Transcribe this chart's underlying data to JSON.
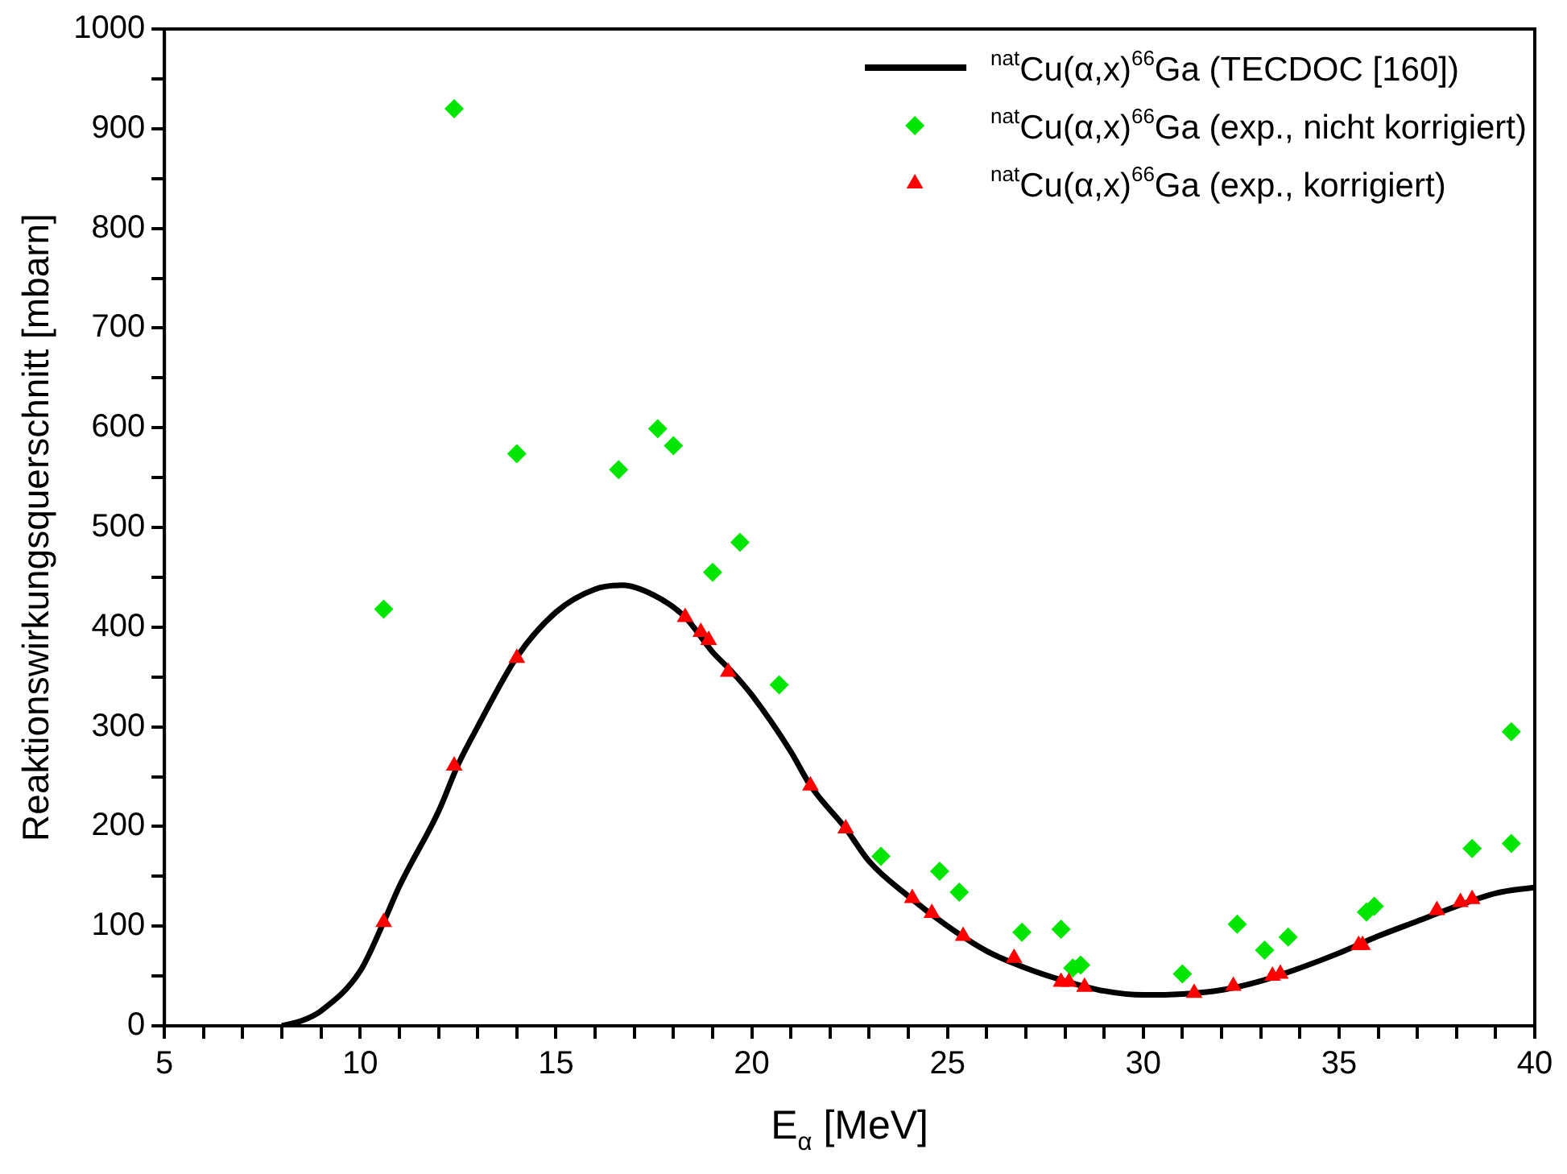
{
  "chart_data": {
    "type": "scatter",
    "xlabel": "E$_{α}$ [MeV]",
    "ylabel": "Reaktionswirkungsquerschnitt [mbarn]",
    "xlim": [
      5,
      40
    ],
    "ylim": [
      0,
      1000
    ],
    "xticks": [
      5,
      {
        "value": 6,
        "label": null
      },
      {
        "value": 7,
        "label": null
      },
      {
        "value": 8,
        "label": null
      },
      {
        "value": 9,
        "label": null
      },
      10,
      {
        "value": 11,
        "label": null
      },
      {
        "value": 12,
        "label": null
      },
      {
        "value": 13,
        "label": null
      },
      {
        "value": 14,
        "label": null
      },
      15,
      {
        "value": 16,
        "label": null
      },
      {
        "value": 17,
        "label": null
      },
      {
        "value": 18,
        "label": null
      },
      {
        "value": 19,
        "label": null
      },
      20,
      {
        "value": 21,
        "label": null
      },
      {
        "value": 22,
        "label": null
      },
      {
        "value": 23,
        "label": null
      },
      {
        "value": 24,
        "label": null
      },
      25,
      {
        "value": 26,
        "label": null
      },
      {
        "value": 27,
        "label": null
      },
      {
        "value": 28,
        "label": null
      },
      {
        "value": 29,
        "label": null
      },
      30,
      {
        "value": 31,
        "label": null
      },
      {
        "value": 32,
        "label": null
      },
      {
        "value": 33,
        "label": null
      },
      {
        "value": 34,
        "label": null
      },
      35,
      {
        "value": 36,
        "label": null
      },
      {
        "value": 37,
        "label": null
      },
      {
        "value": 38,
        "label": null
      },
      {
        "value": 39,
        "label": null
      },
      40
    ],
    "yticks": [
      0,
      {
        "value": 50,
        "label": null
      },
      100,
      {
        "value": 150,
        "label": null
      },
      200,
      {
        "value": 250,
        "label": null
      },
      300,
      {
        "value": 350,
        "label": null
      },
      400,
      {
        "value": 450,
        "label": null
      },
      500,
      {
        "value": 550,
        "label": null
      },
      600,
      {
        "value": 650,
        "label": null
      },
      700,
      {
        "value": 750,
        "label": null
      },
      800,
      {
        "value": 850,
        "label": null
      },
      900,
      {
        "value": 950,
        "label": null
      },
      1000
    ],
    "grid": false,
    "legend": "top right",
    "series": [
      {
        "name": "$^{nat}$Cu(α,x)$^{66}$Ga (TECDOC [160])",
        "type": "line",
        "color": "#000000",
        "marker": "none",
        "line_style": "solid",
        "x": [
          8,
          8.5,
          9,
          10,
          10.6,
          11,
          12,
          12.5,
          13,
          14,
          15,
          16,
          16.7,
          17.5,
          18.3,
          19,
          19.5,
          20,
          21,
          21.5,
          22.4,
          23,
          24,
          25,
          26,
          27,
          28,
          29,
          30,
          31,
          32,
          33,
          34,
          35,
          36,
          37,
          38,
          39,
          40
        ],
        "values": [
          0,
          5,
          15,
          55,
          104,
          140,
          215,
          262,
          300,
          370,
          415,
          438,
          442,
          432,
          410,
          375,
          355,
          332,
          275,
          241,
          198,
          165,
          130,
          100,
          75,
          58,
          45,
          35,
          31,
          32,
          36,
          45,
          58,
          73,
          90,
          105,
          120,
          133,
          139
        ]
      },
      {
        "name": "$^{nat}$Cu(α,x)$^{66}$Ga (exp., nicht korrigiert)",
        "type": "scatter",
        "color": "#00e600",
        "marker": "diamond",
        "x": [
          10.6,
          12.4,
          14.0,
          16.6,
          17.6,
          18.0,
          19.0,
          19.7,
          20.7,
          23.3,
          24.8,
          25.3,
          26.9,
          27.9,
          28.2,
          28.4,
          31.0,
          32.4,
          33.1,
          33.7,
          35.7,
          35.9,
          38.4,
          39.4,
          39.4
        ],
        "values": [
          418,
          920,
          574,
          558,
          599,
          582,
          455,
          485,
          342,
          170,
          155,
          134,
          94,
          97,
          58,
          61,
          52,
          102,
          76,
          89,
          114,
          120,
          178,
          295,
          183
        ]
      },
      {
        "name": "$^{nat}$Cu(α,x)$^{66}$Ga (exp., korrigiert)",
        "type": "scatter",
        "color": "#ff0000",
        "marker": "triangle",
        "x": [
          10.6,
          12.4,
          14.0,
          18.3,
          18.7,
          18.9,
          19.4,
          21.5,
          22.4,
          24.1,
          24.6,
          25.4,
          26.7,
          27.9,
          28.1,
          28.5,
          31.3,
          32.3,
          33.3,
          33.5,
          35.5,
          35.6,
          37.5,
          38.1,
          38.4
        ],
        "values": [
          104,
          261,
          369,
          410,
          395,
          387,
          355,
          241,
          198,
          128,
          113,
          90,
          68,
          44,
          44,
          39,
          33,
          40,
          50,
          52,
          81,
          81,
          116,
          124,
          127
        ]
      }
    ]
  }
}
